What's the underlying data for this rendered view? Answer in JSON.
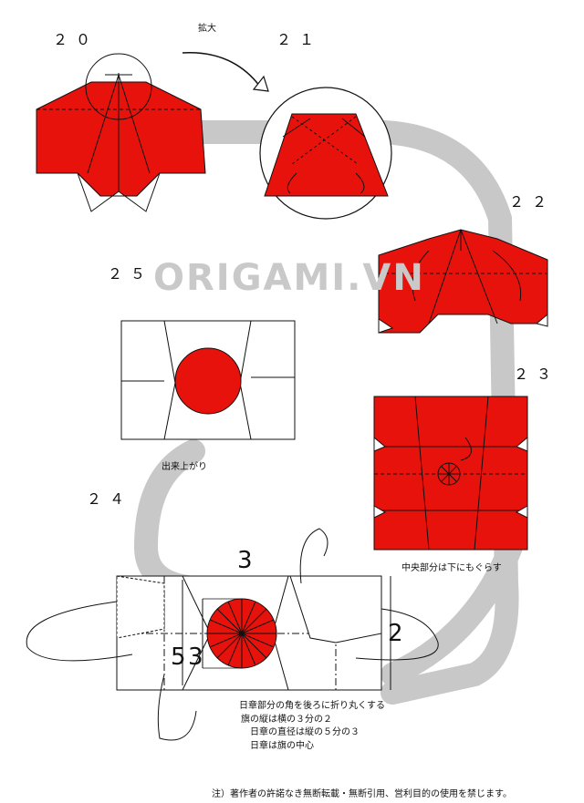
{
  "steps": {
    "s20": "２０",
    "s21": "２１",
    "s22": "２２",
    "s23": "２３",
    "s24": "２４",
    "s25": "２５"
  },
  "watermark": "ORIGAMI.VN",
  "labels": {
    "enlarge": "拡大",
    "finished": "出来上がり",
    "center_tuck": "中央部分は下にもぐらす"
  },
  "dimensions": {
    "width": "3",
    "height": "2",
    "diameter_a": "5",
    "diameter_b": "3"
  },
  "notes": [
    "日章部分の角を後ろに折り丸くする",
    "旗の縦は横の３分の２",
    "日章の直径は縦の５分の３",
    "日章は旗の中心"
  ],
  "footer": "注）著作者の許諾なき無断転載・無断引用、営利目的の使用を禁じます。",
  "colors": {
    "red": "#e8120c",
    "flow": "#c8c8c8",
    "line": "#111111"
  }
}
